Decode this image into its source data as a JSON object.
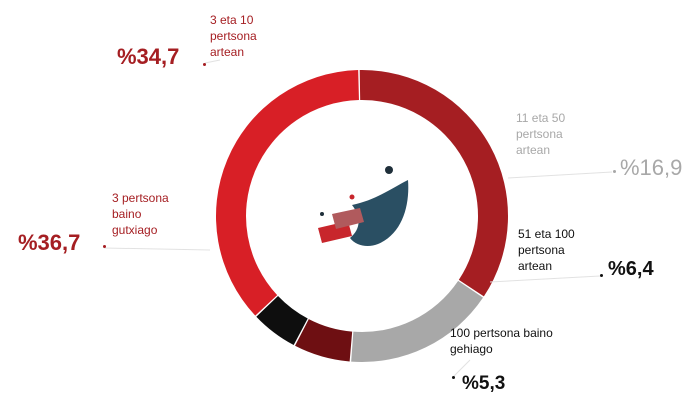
{
  "chart_data": {
    "type": "pie",
    "title": "",
    "categories": [
      "3 eta 10 pertsona artean",
      "11 eta 50 pertsona artean",
      "51 eta 100 pertsona artean",
      "100 pertsona baino gehiago",
      "3 pertsona baino gutxiago"
    ],
    "values": [
      34.7,
      16.9,
      6.4,
      5.3,
      36.7
    ],
    "value_labels": [
      "%34,7",
      "%16,9",
      "%6,4",
      "%5,3",
      "%36,7"
    ],
    "label_lines": [
      [
        "3 eta 10",
        "pertsona",
        "artean"
      ],
      [
        "11 eta 50",
        "pertsona",
        "artean"
      ],
      [
        "51 eta 100",
        "pertsona",
        "artean"
      ],
      [
        "100 pertsona baino",
        "gehiago"
      ],
      [
        "3 pertsona",
        "baino",
        "gutxiago"
      ]
    ],
    "colors": [
      "#a51e22",
      "#a8a8a8",
      "#6e0f12",
      "#0e0e0e",
      "#d81f26"
    ],
    "label_colors": [
      "#a51e22",
      "#a8a8a8",
      "#111111",
      "#111111",
      "#a51e22"
    ],
    "hole": true
  }
}
